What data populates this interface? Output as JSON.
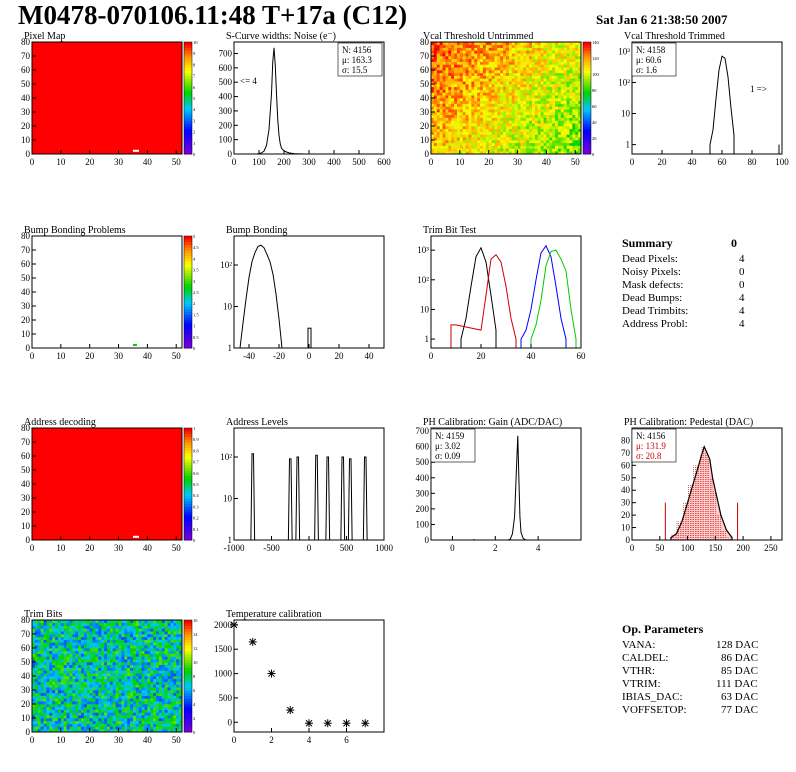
{
  "header": {
    "title": "M0478-070106.11:48 T+17a (C12)",
    "date": "Sat Jan  6 21:38:50 2007"
  },
  "pixel_map": {
    "title": "Pixel Map",
    "x_ticks": [
      "0",
      "10",
      "20",
      "30",
      "40",
      "50"
    ],
    "y_ticks": [
      "0",
      "10",
      "20",
      "30",
      "40",
      "50",
      "60",
      "70",
      "80"
    ],
    "palette_ticks": [
      "0",
      "1",
      "2",
      "3",
      "4",
      "5",
      "6",
      "7",
      "8",
      "9",
      "10"
    ]
  },
  "scurve": {
    "title": "S-Curve widths: Noise (e⁻)",
    "x_ticks": [
      "0",
      "100",
      "200",
      "300",
      "400",
      "500",
      "600"
    ],
    "y_ticks": [
      "0",
      "100",
      "200",
      "300",
      "400",
      "500",
      "600",
      "700"
    ],
    "stats": [
      "N: 4156",
      "μ: 163.3",
      "σ: 15.5"
    ],
    "note": "<= 4"
  },
  "vcal_untrimmed": {
    "title": "Vcal Threshold Untrimmed",
    "x_ticks": [
      "0",
      "10",
      "20",
      "30",
      "40",
      "50"
    ],
    "y_ticks": [
      "0",
      "10",
      "20",
      "30",
      "40",
      "50",
      "60",
      "70",
      "80"
    ],
    "palette_ticks": [
      "0",
      "20",
      "40",
      "60",
      "80",
      "100",
      "120",
      "140"
    ]
  },
  "vcal_trimmed": {
    "title": "Vcal Threshold Trimmed",
    "x_ticks": [
      "0",
      "20",
      "40",
      "60",
      "80",
      "100"
    ],
    "y_ticks": [
      "1",
      "10",
      "10²",
      "10³"
    ],
    "stats": [
      "N: 4158",
      "μ: 60.6",
      "σ:  1.6"
    ],
    "note": "1 =>"
  },
  "bump_problems": {
    "title": "Bump Bonding Problems",
    "x_ticks": [
      "0",
      "10",
      "20",
      "30",
      "40",
      "50"
    ],
    "y_ticks": [
      "0",
      "10",
      "20",
      "30",
      "40",
      "50",
      "60",
      "70",
      "80"
    ],
    "palette_ticks": [
      "0",
      "0.5",
      "1",
      "1.5",
      "2",
      "2.5",
      "3",
      "3.5",
      "4",
      "4.5",
      "5"
    ]
  },
  "bump_bonding": {
    "title": "Bump Bonding",
    "x_ticks": [
      "-40",
      "-20",
      "0",
      "20",
      "40"
    ],
    "y_ticks": [
      "1",
      "10",
      "10²"
    ]
  },
  "trim_bit": {
    "title": "Trim Bit Test",
    "x_ticks": [
      "0",
      "20",
      "40",
      "60"
    ],
    "y_ticks": [
      "1",
      "10",
      "10²",
      "10³"
    ]
  },
  "summary": {
    "title": "Summary",
    "title_value": "0",
    "rows": [
      {
        "label": "Dead Pixels:",
        "value": "4"
      },
      {
        "label": "Noisy Pixels:",
        "value": "0"
      },
      {
        "label": "Mask defects:",
        "value": "0"
      },
      {
        "label": "Dead Bumps:",
        "value": "4"
      },
      {
        "label": "Dead Trimbits:",
        "value": "4"
      },
      {
        "label": "Address Probl:",
        "value": "4"
      }
    ]
  },
  "address_decoding": {
    "title": "Address decoding",
    "x_ticks": [
      "0",
      "10",
      "20",
      "30",
      "40",
      "50"
    ],
    "y_ticks": [
      "0",
      "10",
      "20",
      "30",
      "40",
      "50",
      "60",
      "70",
      "80"
    ],
    "palette_ticks": [
      "0",
      "0.1",
      "0.2",
      "0.3",
      "0.4",
      "0.5",
      "0.6",
      "0.7",
      "0.8",
      "0.9",
      "1"
    ]
  },
  "address_levels": {
    "title": "Address Levels",
    "x_ticks": [
      "-1000",
      "-500",
      "0",
      "500",
      "1000"
    ],
    "y_ticks": [
      "1",
      "10",
      "10²"
    ]
  },
  "ph_gain": {
    "title": "PH Calibration: Gain (ADC/DAC)",
    "x_ticks": [
      "0",
      "2",
      "4"
    ],
    "y_ticks": [
      "0",
      "100",
      "200",
      "300",
      "400",
      "500",
      "600",
      "700"
    ],
    "stats": [
      "N: 4159",
      "μ: 3.02",
      "σ: 0.09"
    ]
  },
  "ph_pedestal": {
    "title": "PH Calibration: Pedestal (DAC)",
    "x_ticks": [
      "0",
      "50",
      "100",
      "150",
      "200",
      "250"
    ],
    "y_ticks": [
      "0",
      "10",
      "20",
      "30",
      "40",
      "50",
      "60",
      "70",
      "80"
    ],
    "stats": [
      "N: 4156",
      "μ: 131.9",
      "σ: 20.8"
    ]
  },
  "trim_bits": {
    "title": "Trim Bits",
    "x_ticks": [
      "0",
      "10",
      "20",
      "30",
      "40",
      "50"
    ],
    "y_ticks": [
      "0",
      "10",
      "20",
      "30",
      "40",
      "50",
      "60",
      "70",
      "80"
    ],
    "palette_ticks": [
      "0",
      "2",
      "4",
      "6",
      "8",
      "10",
      "12",
      "14",
      "16"
    ]
  },
  "temperature": {
    "title": "Temperature calibration",
    "x_ticks": [
      "0",
      "2",
      "4",
      "6"
    ],
    "y_ticks": [
      "0",
      "500",
      "1000",
      "1500",
      "2000"
    ]
  },
  "op_params": {
    "title": "Op. Parameters",
    "rows": [
      {
        "label": "VANA:",
        "value": "128 DAC"
      },
      {
        "label": "CALDEL:",
        "value": "86 DAC"
      },
      {
        "label": "VTHR:",
        "value": "85 DAC"
      },
      {
        "label": "VTRIM:",
        "value": "111 DAC"
      },
      {
        "label": "IBIAS_DAC:",
        "value": "63 DAC"
      },
      {
        "label": "VOFFSETOP:",
        "value": "77 DAC"
      }
    ]
  },
  "colors": {
    "red": "#ff0000",
    "dark_red": "#cc0000",
    "green": "#00cc00",
    "blue": "#0000ff",
    "black": "#000000"
  },
  "chart_data": [
    {
      "type": "heatmap",
      "name": "Pixel Map",
      "xlim": [
        0,
        52
      ],
      "ylim": [
        0,
        80
      ],
      "fill": "uniform 10",
      "defects": [
        {
          "x": 35,
          "y": 2,
          "value": 0
        }
      ]
    },
    {
      "type": "bar",
      "name": "S-Curve widths: Noise",
      "x": [
        90,
        100,
        110,
        120,
        130,
        140,
        150,
        155,
        160,
        165,
        170,
        175,
        180,
        185,
        190,
        200,
        210,
        220,
        230,
        240,
        250,
        260,
        270,
        280,
        290,
        300
      ],
      "values": [
        0,
        3,
        8,
        20,
        60,
        170,
        420,
        640,
        740,
        620,
        420,
        240,
        130,
        70,
        40,
        22,
        14,
        8,
        5,
        3,
        2,
        1,
        1,
        0,
        0,
        0
      ],
      "xlim": [
        0,
        600
      ],
      "ylim": [
        0,
        780
      ]
    },
    {
      "type": "heatmap",
      "name": "Vcal Threshold Untrimmed",
      "xlim": [
        0,
        52
      ],
      "ylim": [
        0,
        80
      ],
      "zlim": [
        0,
        150
      ],
      "gradient": "higher at top-left, lower at bottom-right"
    },
    {
      "type": "bar",
      "name": "Vcal Threshold Trimmed",
      "log_y": true,
      "x": [
        52,
        54,
        56,
        58,
        60,
        62,
        64,
        66,
        68,
        98
      ],
      "values": [
        1,
        3,
        30,
        250,
        700,
        600,
        150,
        15,
        2,
        1
      ],
      "xlim": [
        0,
        100
      ],
      "ylim": [
        0.5,
        2000
      ]
    },
    {
      "type": "heatmap",
      "name": "Bump Bonding Problems",
      "xlim": [
        0,
        52
      ],
      "ylim": [
        0,
        80
      ],
      "zlim": [
        0,
        5
      ],
      "cells": [
        {
          "x": 35,
          "y": 2,
          "value": 2
        }
      ]
    },
    {
      "type": "bar",
      "name": "Bump Bonding",
      "log_y": true,
      "x": [
        -46,
        -44,
        -42,
        -40,
        -38,
        -36,
        -34,
        -32,
        -30,
        -28,
        -26,
        -24,
        -22,
        -20,
        -18,
        0
      ],
      "values": [
        1,
        4,
        15,
        50,
        120,
        200,
        280,
        300,
        260,
        180,
        120,
        60,
        20,
        5,
        1,
        3
      ],
      "xlim": [
        -50,
        50
      ],
      "ylim": [
        1,
        500
      ]
    },
    {
      "type": "line",
      "name": "Trim Bit Test",
      "log_y": true,
      "series": [
        {
          "x": [
            12,
            14,
            16,
            18,
            20,
            22,
            24,
            26
          ],
          "values": [
            1,
            5,
            60,
            600,
            1200,
            400,
            30,
            2
          ]
        },
        {
          "x": [
            8,
            10,
            20,
            22,
            24,
            26,
            28,
            30,
            32,
            34
          ],
          "values": [
            3,
            3,
            2,
            30,
            500,
            700,
            400,
            60,
            5,
            1
          ]
        },
        {
          "x": [
            36,
            38,
            40,
            42,
            44,
            46,
            48,
            50,
            52,
            54
          ],
          "values": [
            1,
            2,
            10,
            100,
            800,
            1400,
            600,
            60,
            5,
            1
          ]
        },
        {
          "x": [
            40,
            42,
            44,
            46,
            48,
            50,
            52,
            54,
            56,
            58
          ],
          "values": [
            1,
            3,
            20,
            300,
            900,
            1000,
            500,
            200,
            10,
            1
          ]
        }
      ],
      "xlim": [
        0,
        60
      ],
      "ylim": [
        0.5,
        3000
      ]
    },
    {
      "type": "heatmap",
      "name": "Address decoding",
      "xlim": [
        0,
        52
      ],
      "ylim": [
        0,
        80
      ],
      "fill": "uniform 1",
      "defects": [
        {
          "x": 35,
          "y": 2,
          "value": 0
        }
      ]
    },
    {
      "type": "bar",
      "name": "Address Levels",
      "log_y": true,
      "peaks": [
        -750,
        -250,
        -150,
        100,
        250,
        450,
        550,
        750
      ],
      "peak_height": [
        120,
        90,
        100,
        110,
        100,
        100,
        90,
        100
      ],
      "xlim": [
        -1000,
        1000
      ],
      "ylim": [
        1,
        500
      ]
    },
    {
      "type": "bar",
      "name": "PH Calibration: Gain",
      "x": [
        2.7,
        2.8,
        2.9,
        3.0,
        3.05,
        3.1,
        3.15,
        3.2,
        3.3,
        3.4
      ],
      "values": [
        5,
        40,
        150,
        500,
        670,
        400,
        150,
        50,
        10,
        2
      ],
      "xlim": [
        -1,
        6
      ],
      "ylim": [
        0,
        720
      ]
    },
    {
      "type": "bar",
      "name": "PH Calibration: Pedestal",
      "x": [
        70,
        80,
        90,
        100,
        110,
        120,
        125,
        130,
        135,
        140,
        145,
        150,
        160,
        170,
        180
      ],
      "values": [
        2,
        5,
        15,
        30,
        45,
        60,
        68,
        75,
        70,
        65,
        50,
        40,
        20,
        8,
        2
      ],
      "xlim": [
        0,
        270
      ],
      "ylim": [
        0,
        90
      ]
    },
    {
      "type": "heatmap",
      "name": "Trim Bits",
      "xlim": [
        0,
        52
      ],
      "ylim": [
        0,
        80
      ],
      "zlim": [
        0,
        16
      ],
      "fill": "random 4-12"
    },
    {
      "type": "scatter",
      "name": "Temperature calibration",
      "x": [
        0,
        1,
        2,
        3,
        4,
        5,
        6,
        7
      ],
      "values": [
        2000,
        1650,
        1000,
        250,
        -20,
        -20,
        -20,
        -20
      ],
      "xlim": [
        0,
        8
      ],
      "ylim": [
        -200,
        2100
      ]
    }
  ]
}
